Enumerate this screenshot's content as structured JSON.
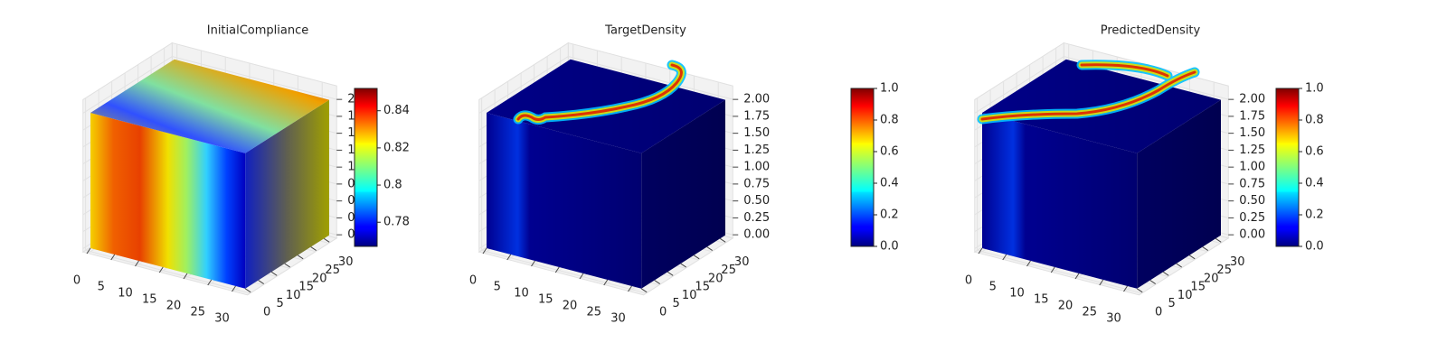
{
  "chart_data": [
    {
      "type": "voxel",
      "title": "InitialCompliance",
      "colormap": "jet",
      "xlim": [
        0,
        32
      ],
      "ylim": [
        0,
        32
      ],
      "zlim": [
        0,
        2
      ],
      "xticks": [
        0,
        5,
        10,
        15,
        20,
        25,
        30
      ],
      "yticks": [
        0,
        5,
        10,
        15,
        20,
        25,
        30
      ],
      "zticks": [
        {
          "value": 0,
          "label": "0.00"
        },
        {
          "value": 0.25,
          "label": "0.25"
        },
        {
          "value": 0.5,
          "label": "0.50"
        },
        {
          "value": 0.75,
          "label": "0.75"
        },
        {
          "value": 1,
          "label": "1.00"
        },
        {
          "value": 1.25,
          "label": "1.25"
        },
        {
          "value": 1.5,
          "label": "1.50"
        },
        {
          "value": 1.75,
          "label": "1.75"
        },
        {
          "value": 2,
          "label": "2.00"
        }
      ],
      "clim": [
        0.767,
        0.852
      ],
      "cticks": [
        0.78,
        0.8,
        0.82,
        0.84
      ]
    },
    {
      "type": "voxel",
      "title": "TargetDensity",
      "colormap": "jet",
      "xlim": [
        0,
        32
      ],
      "ylim": [
        0,
        32
      ],
      "zlim": [
        0,
        2
      ],
      "xticks": [
        0,
        5,
        10,
        15,
        20,
        25,
        30
      ],
      "yticks": [
        0,
        5,
        10,
        15,
        20,
        25,
        30
      ],
      "zticks": [
        {
          "value": 0,
          "label": "0.00"
        },
        {
          "value": 0.25,
          "label": "0.25"
        },
        {
          "value": 0.5,
          "label": "0.50"
        },
        {
          "value": 0.75,
          "label": "0.75"
        },
        {
          "value": 1,
          "label": "1.00"
        },
        {
          "value": 1.25,
          "label": "1.25"
        },
        {
          "value": 1.5,
          "label": "1.50"
        },
        {
          "value": 1.75,
          "label": "1.75"
        },
        {
          "value": 2,
          "label": "2.00"
        }
      ],
      "clim": [
        0,
        1
      ],
      "cticks": [
        {
          "value": 0,
          "label": "0.0"
        },
        0.2,
        0.4,
        0.6,
        0.8,
        {
          "value": 1,
          "label": "1.0"
        }
      ]
    },
    {
      "type": "voxel",
      "title": "PredictedDensity",
      "colormap": "jet",
      "xlim": [
        0,
        32
      ],
      "ylim": [
        0,
        32
      ],
      "zlim": [
        0,
        2
      ],
      "xticks": [
        0,
        5,
        10,
        15,
        20,
        25,
        30
      ],
      "yticks": [
        0,
        5,
        10,
        15,
        20,
        25,
        30
      ],
      "zticks": [
        {
          "value": 0,
          "label": "0.00"
        },
        {
          "value": 0.25,
          "label": "0.25"
        },
        {
          "value": 0.5,
          "label": "0.50"
        },
        {
          "value": 0.75,
          "label": "0.75"
        },
        {
          "value": 1,
          "label": "1.00"
        },
        {
          "value": 1.25,
          "label": "1.25"
        },
        {
          "value": 1.5,
          "label": "1.50"
        },
        {
          "value": 1.75,
          "label": "1.75"
        },
        {
          "value": 2,
          "label": "2.00"
        }
      ],
      "clim": [
        0,
        1
      ],
      "cticks": [
        {
          "value": 0,
          "label": "0.0"
        },
        0.2,
        0.4,
        0.6,
        0.8,
        {
          "value": 1,
          "label": "1.0"
        }
      ]
    }
  ]
}
